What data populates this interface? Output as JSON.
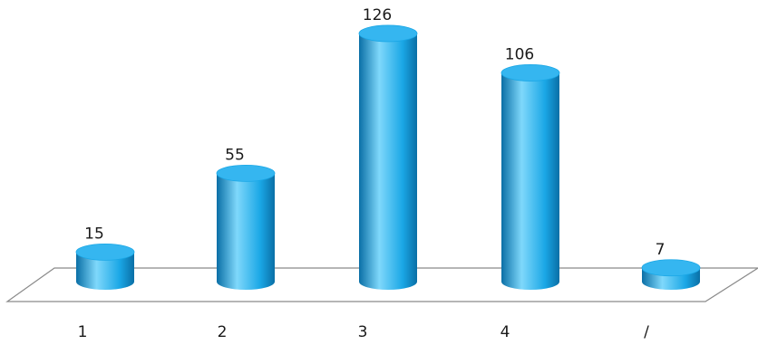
{
  "chart_data": {
    "type": "bar",
    "style": "3d-cylinder",
    "categories": [
      "1",
      "2",
      "3",
      "4",
      "/"
    ],
    "values": [
      15,
      55,
      126,
      106,
      7
    ],
    "data_labels": [
      "15",
      "55",
      "126",
      "106",
      "7"
    ],
    "title": "",
    "xlabel": "",
    "ylabel": "",
    "ylim": [
      0,
      130
    ],
    "grid": false,
    "legend": "none",
    "colors": {
      "bar_light": "#7fd8fb",
      "bar_mid": "#1aa7e6",
      "bar_dark": "#0a6fa6",
      "bar_top": "#35b6f0",
      "floor_stroke": "#8a8a8a",
      "floor_fill": "#ffffff"
    }
  }
}
